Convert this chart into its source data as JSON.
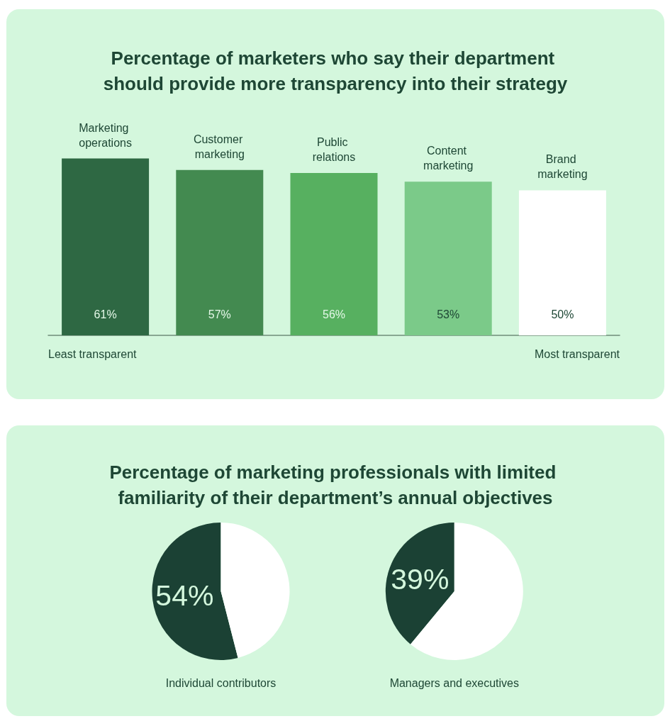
{
  "chart_data": [
    {
      "type": "bar",
      "title": "Percentage of marketers who say their department should provide more transparency into their strategy",
      "categories": [
        "Marketing operations",
        "Customer marketing",
        "Public relations",
        "Content marketing",
        "Brand marketing"
      ],
      "values": [
        61,
        57,
        56,
        53,
        50
      ],
      "value_labels": [
        "61%",
        "57%",
        "56%",
        "53%",
        "50%"
      ],
      "colors": [
        "#2e6843",
        "#438a50",
        "#57b060",
        "#7bca89",
        "#ffffff"
      ],
      "annotations": [
        "Least transparent",
        "Most transparent"
      ],
      "tick_labels": "x"
    },
    {
      "type": "pie",
      "title": "Percentage of marketing professionals with limited familiarity of their department’s annual objectives",
      "xlabel": "Individual contributors",
      "categories": [
        null,
        null
      ],
      "values": [
        54,
        46
      ],
      "value_labels": [
        "54%",
        null
      ],
      "colors": [
        "#1b4134",
        "#ffffff"
      ]
    },
    {
      "type": "pie",
      "xlabel": "Managers and executives",
      "categories": [
        null,
        null
      ],
      "values": [
        39,
        61
      ],
      "value_labels": [
        "39%",
        null
      ],
      "colors": [
        "#1b4134",
        "#ffffff"
      ]
    }
  ]
}
